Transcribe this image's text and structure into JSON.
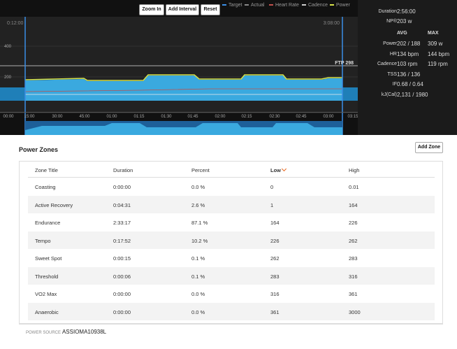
{
  "toolbar": {
    "buttons": [
      "Zoom In",
      "Add Interval",
      "Reset"
    ],
    "legend": [
      "Target",
      "Actual",
      "Heart Rate",
      "Cadence",
      "Power"
    ]
  },
  "graph": {
    "start_time": "0:12:00",
    "end_time": "3:08:00",
    "y_labels": [
      "400",
      "200"
    ],
    "ftp_label": "FTP 298",
    "x_labels": [
      "00:00",
      "15:00",
      "30:00",
      "45:00",
      "01:00",
      "01:15",
      "01:30",
      "01:45",
      "02:00",
      "02:15",
      "02:30",
      "02:45",
      "03:00",
      "03:15"
    ]
  },
  "summary": {
    "duration_label": "Duration",
    "duration": "2:56:00",
    "np_label": "NP®",
    "np": "203 w",
    "avg_header": "AVG",
    "max_header": "MAX",
    "rows": [
      [
        "Power",
        "202 / 188",
        "309 w"
      ],
      [
        "HR",
        "134 bpm",
        "144 bpm"
      ],
      [
        "Cadence",
        "103 rpm",
        "119 rpm"
      ],
      [
        "TSS",
        "136 / 136",
        ""
      ],
      [
        "IF",
        "0.68 / 0.64",
        ""
      ],
      [
        "kJ(Cal)",
        "2,131 / 1980",
        ""
      ]
    ]
  },
  "zones": {
    "title": "Power Zones",
    "add_button": "Add Zone",
    "headers": [
      "Zone Title",
      "Duration",
      "Percent",
      "Low",
      "High"
    ],
    "rows": [
      [
        "Coasting",
        "0:00:00",
        "0.0 %",
        "0",
        "0.01"
      ],
      [
        "Active Recovery",
        "0:04:31",
        "2.6 %",
        "1",
        "164"
      ],
      [
        "Endurance",
        "2:33:17",
        "87.1 %",
        "164",
        "226"
      ],
      [
        "Tempo",
        "0:17:52",
        "10.2 %",
        "226",
        "262"
      ],
      [
        "Sweet Spot",
        "0:00:15",
        "0.1 %",
        "262",
        "283"
      ],
      [
        "Threshold",
        "0:00:06",
        "0.1 %",
        "283",
        "316"
      ],
      [
        "VO2 Max",
        "0:00:00",
        "0.0 %",
        "316",
        "361"
      ],
      [
        "Anaerobic",
        "0:00:00",
        "0.0 %",
        "361",
        "3000"
      ]
    ],
    "power_source_label": "POWER SOURCE",
    "power_source": "ASSIOMA10938L"
  }
}
